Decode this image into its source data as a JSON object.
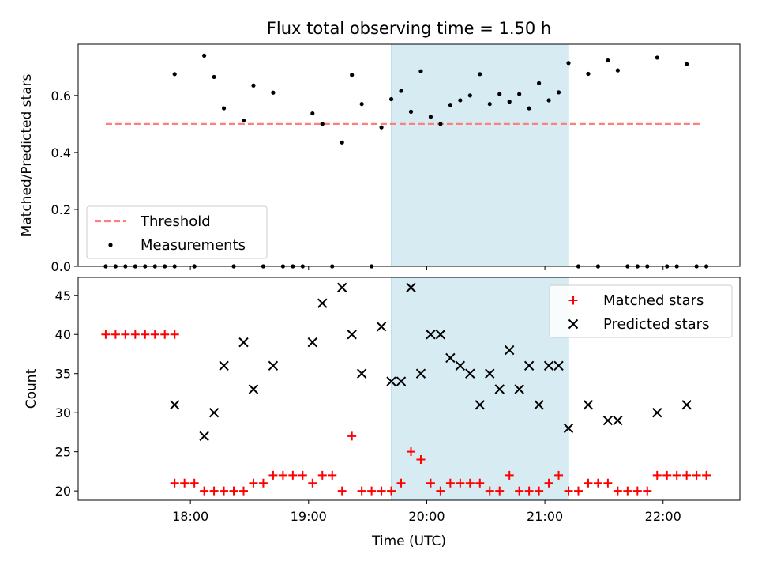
{
  "chart_data": {
    "type": "scatter",
    "title": "Flux total observing time = 1.50 h",
    "xlabel": "Time (UTC)",
    "x_ticks": [
      "18:00",
      "19:00",
      "20:00",
      "21:00",
      "22:00"
    ],
    "shaded_interval": [
      "19:42",
      "21:12"
    ],
    "shade_color": "#add8e6",
    "panels": [
      {
        "ylabel": "Matched/Predicted stars",
        "ylim": [
          0,
          0.78
        ],
        "y_ticks": [
          "0.0",
          "0.2",
          "0.4",
          "0.6"
        ],
        "legend_location": "lower left",
        "threshold": {
          "name": "Threshold",
          "value": 0.5,
          "x_range": [
            "17:17",
            "22:20"
          ],
          "color": "#ff7f7f"
        },
        "series": [
          {
            "name": "Measurements",
            "marker": "dot",
            "color": "#000000",
            "points": [
              [
                "17:17",
                0.0
              ],
              [
                "17:22",
                0.0
              ],
              [
                "17:27",
                0.0
              ],
              [
                "17:32",
                0.0
              ],
              [
                "17:37",
                0.0
              ],
              [
                "17:42",
                0.0
              ],
              [
                "17:47",
                0.0
              ],
              [
                "17:52",
                0.0
              ],
              [
                "17:52",
                0.675
              ],
              [
                "18:02",
                0.0
              ],
              [
                "18:02",
                0.0
              ],
              [
                "18:07",
                0.74
              ],
              [
                "18:12",
                0.665
              ],
              [
                "18:17",
                0.555
              ],
              [
                "18:22",
                0.0
              ],
              [
                "18:27",
                0.512
              ],
              [
                "18:32",
                0.635
              ],
              [
                "18:37",
                0.0
              ],
              [
                "18:42",
                0.61
              ],
              [
                "18:47",
                0.0
              ],
              [
                "18:52",
                0.0
              ],
              [
                "18:57",
                0.0
              ],
              [
                "19:02",
                0.537
              ],
              [
                "19:07",
                0.5
              ],
              [
                "19:12",
                0.0
              ],
              [
                "19:17",
                0.435
              ],
              [
                "19:22",
                0.672
              ],
              [
                "19:27",
                0.57
              ],
              [
                "19:32",
                0.0
              ],
              [
                "19:37",
                0.488
              ],
              [
                "19:42",
                0.587
              ],
              [
                "19:47",
                0.616
              ],
              [
                "19:52",
                0.543
              ],
              [
                "19:57",
                0.685
              ],
              [
                "20:02",
                0.525
              ],
              [
                "20:07",
                0.5
              ],
              [
                "20:12",
                0.567
              ],
              [
                "20:17",
                0.583
              ],
              [
                "20:22",
                0.6
              ],
              [
                "20:27",
                0.675
              ],
              [
                "20:32",
                0.57
              ],
              [
                "20:37",
                0.605
              ],
              [
                "20:42",
                0.578
              ],
              [
                "20:47",
                0.605
              ],
              [
                "20:52",
                0.555
              ],
              [
                "20:57",
                0.643
              ],
              [
                "21:02",
                0.583
              ],
              [
                "21:07",
                0.611
              ],
              [
                "21:12",
                0.714
              ],
              [
                "21:17",
                0.0
              ],
              [
                "21:22",
                0.676
              ],
              [
                "21:27",
                0.0
              ],
              [
                "21:32",
                0.723
              ],
              [
                "21:37",
                0.688
              ],
              [
                "21:42",
                0.0
              ],
              [
                "21:47",
                0.0
              ],
              [
                "21:52",
                0.0
              ],
              [
                "21:57",
                0.733
              ],
              [
                "22:02",
                0.0
              ],
              [
                "22:07",
                0.0
              ],
              [
                "22:12",
                0.71
              ],
              [
                "22:17",
                0.0
              ],
              [
                "22:22",
                0.0
              ]
            ]
          }
        ]
      },
      {
        "ylabel": "Count",
        "ylim": [
          18.8,
          47.3
        ],
        "y_ticks": [
          "20",
          "25",
          "30",
          "35",
          "40",
          "45"
        ],
        "legend_location": "upper right",
        "series": [
          {
            "name": "Matched stars",
            "marker": "plus",
            "color": "#ff0000",
            "points": [
              [
                "17:17",
                40
              ],
              [
                "17:22",
                40
              ],
              [
                "17:27",
                40
              ],
              [
                "17:32",
                40
              ],
              [
                "17:37",
                40
              ],
              [
                "17:42",
                40
              ],
              [
                "17:47",
                40
              ],
              [
                "17:52",
                40
              ],
              [
                "17:52",
                21
              ],
              [
                "17:57",
                21
              ],
              [
                "18:02",
                21
              ],
              [
                "18:07",
                20
              ],
              [
                "18:12",
                20
              ],
              [
                "18:17",
                20
              ],
              [
                "18:22",
                20
              ],
              [
                "18:27",
                20
              ],
              [
                "18:32",
                21
              ],
              [
                "18:37",
                21
              ],
              [
                "18:42",
                22
              ],
              [
                "18:47",
                22
              ],
              [
                "18:52",
                22
              ],
              [
                "18:57",
                22
              ],
              [
                "19:02",
                21
              ],
              [
                "19:07",
                22
              ],
              [
                "19:12",
                22
              ],
              [
                "19:17",
                20
              ],
              [
                "19:22",
                27
              ],
              [
                "19:27",
                20
              ],
              [
                "19:32",
                20
              ],
              [
                "19:37",
                20
              ],
              [
                "19:42",
                20
              ],
              [
                "19:47",
                21
              ],
              [
                "19:52",
                25
              ],
              [
                "19:57",
                24
              ],
              [
                "20:02",
                21
              ],
              [
                "20:07",
                20
              ],
              [
                "20:12",
                21
              ],
              [
                "20:17",
                21
              ],
              [
                "20:22",
                21
              ],
              [
                "20:27",
                21
              ],
              [
                "20:32",
                20
              ],
              [
                "20:37",
                20
              ],
              [
                "20:42",
                22
              ],
              [
                "20:47",
                20
              ],
              [
                "20:52",
                20
              ],
              [
                "20:57",
                20
              ],
              [
                "21:02",
                21
              ],
              [
                "21:07",
                22
              ],
              [
                "21:12",
                20
              ],
              [
                "21:17",
                20
              ],
              [
                "21:22",
                21
              ],
              [
                "21:27",
                21
              ],
              [
                "21:32",
                21
              ],
              [
                "21:37",
                20
              ],
              [
                "21:42",
                20
              ],
              [
                "21:47",
                20
              ],
              [
                "21:52",
                20
              ],
              [
                "21:57",
                22
              ],
              [
                "22:02",
                22
              ],
              [
                "22:07",
                22
              ],
              [
                "22:12",
                22
              ],
              [
                "22:17",
                22
              ],
              [
                "22:22",
                22
              ]
            ]
          },
          {
            "name": "Predicted stars",
            "marker": "x",
            "color": "#000000",
            "points": [
              [
                "17:52",
                31
              ],
              [
                "18:07",
                27
              ],
              [
                "18:12",
                30
              ],
              [
                "18:17",
                36
              ],
              [
                "18:27",
                39
              ],
              [
                "18:32",
                33
              ],
              [
                "18:42",
                36
              ],
              [
                "19:02",
                39
              ],
              [
                "19:07",
                44
              ],
              [
                "19:17",
                46
              ],
              [
                "19:22",
                40
              ],
              [
                "19:27",
                35
              ],
              [
                "19:37",
                41
              ],
              [
                "19:42",
                34
              ],
              [
                "19:47",
                34
              ],
              [
                "19:52",
                46
              ],
              [
                "19:57",
                35
              ],
              [
                "20:02",
                40
              ],
              [
                "20:07",
                40
              ],
              [
                "20:12",
                37
              ],
              [
                "20:17",
                36
              ],
              [
                "20:22",
                35
              ],
              [
                "20:27",
                31
              ],
              [
                "20:32",
                35
              ],
              [
                "20:37",
                33
              ],
              [
                "20:42",
                38
              ],
              [
                "20:47",
                33
              ],
              [
                "20:52",
                36
              ],
              [
                "20:57",
                31
              ],
              [
                "21:02",
                36
              ],
              [
                "21:07",
                36
              ],
              [
                "21:12",
                28
              ],
              [
                "21:22",
                31
              ],
              [
                "21:32",
                29
              ],
              [
                "21:37",
                29
              ],
              [
                "21:57",
                30
              ],
              [
                "22:12",
                31
              ]
            ]
          }
        ]
      }
    ]
  }
}
